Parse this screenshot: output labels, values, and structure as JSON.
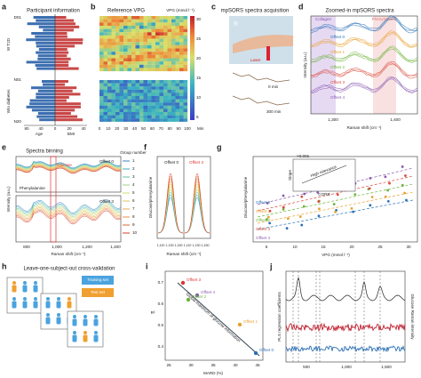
{
  "panels": {
    "a": {
      "label": "a",
      "title": "Participant information",
      "groups": [
        "W T2D",
        "W/o diabetes"
      ],
      "y_ticks": [
        "D01",
        "N01",
        "N20"
      ],
      "x_ticks": [
        "80",
        "40",
        "0",
        "20",
        "40"
      ],
      "x_labels": [
        "Age",
        "BMI"
      ]
    },
    "b": {
      "label": "b",
      "title": "Reference VPG",
      "colorbar_title": "VPG (mmol l⁻¹)",
      "colorbar_ticks": [
        "30",
        "25",
        "20",
        "15",
        "10",
        "5"
      ],
      "x_ticks": [
        "0",
        "10",
        "20",
        "30",
        "40",
        "50",
        "60",
        "70",
        "80",
        "90",
        "100"
      ],
      "x_unit": "Min"
    },
    "c": {
      "label": "c",
      "title": "mpSORS spectra acquisition",
      "photo_label": "R",
      "laser": "Laser",
      "times": [
        "0 min",
        "300 min"
      ]
    },
    "d": {
      "label": "d",
      "title": "Zoomed-in mpSORS spectra",
      "bands": [
        "Collagen",
        "Phenylalanine"
      ],
      "offsets": [
        "Offset 0",
        "Offset 1",
        "Offset 2",
        "Offset 3",
        "Offset 4"
      ],
      "x_ticks": [
        "1,300",
        "1,400"
      ],
      "x_label": "Raman shift (cm⁻¹)",
      "y_label": "Intensity (a.u.)"
    },
    "e": {
      "label": "e",
      "title": "Spectra binning",
      "legend_title": "Group number",
      "groups": [
        "1",
        "2",
        "3",
        "4",
        "5",
        "6",
        "7",
        "8",
        "9",
        "10"
      ],
      "offsets": [
        "Offset 0",
        "Offset 3"
      ],
      "annotations": [
        "Phenylalanine",
        "Glucose"
      ],
      "x_ticks": [
        "800",
        "1,000",
        "1,200",
        "1,400"
      ],
      "x_label": "Raman shift (cm⁻¹)",
      "y_label": "Intensity (a.u.)"
    },
    "f": {
      "label": "f",
      "offsets": [
        "Offset 0",
        "Offset 3"
      ],
      "x_ticks": [
        "1,110",
        "1,130",
        "1,150",
        "1,110",
        "1,130",
        "1,150"
      ],
      "x_label": "Raman shift (cm⁻¹)",
      "y_label": "Glucose/phenylalanine"
    },
    "g": {
      "label": "g",
      "offsets": [
        "Offset 0",
        "Offset 1",
        "Offset 2",
        "Offset 3",
        "Offset 4"
      ],
      "x_ticks": [
        "5",
        "10",
        "15",
        "20",
        "25",
        "30"
      ],
      "x_label": "VPG (mmol l⁻¹)",
      "y_label": "Glucose/phenylalanine",
      "inset": {
        "scale": "×0.001",
        "y_label": "Slope",
        "x_label": "CORR",
        "annotation": "High relevance"
      }
    },
    "h": {
      "label": "h",
      "title": "Leave-one-subject-out cross-validation",
      "legend": [
        "Training set",
        "Test set"
      ]
    },
    "i": {
      "label": "i",
      "offsets": [
        "Offset 3",
        "Offset 4",
        "Offset 2",
        "Offset 1",
        "Offset 0"
      ],
      "annotation": "Global maximum of glucose information",
      "x_ticks": [
        "25",
        "30",
        "35",
        "40",
        "45"
      ],
      "y_ticks": [
        "0.4",
        "0.5",
        "0.6",
        "0.7"
      ],
      "x_label": "MARD (%)",
      "y_label": "R²"
    },
    "j": {
      "label": "j",
      "y_label": "PLS regression coefficients",
      "y2_label": "Glucose Raman intensity",
      "x_ticks": [
        "500",
        "1,000",
        "1,500"
      ]
    }
  }
}
